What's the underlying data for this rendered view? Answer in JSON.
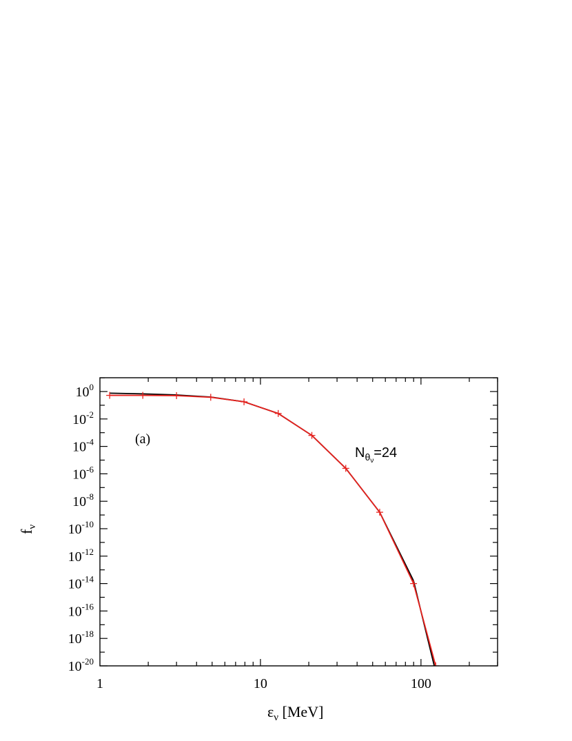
{
  "chart_data": {
    "type": "line",
    "xscale": "log",
    "yscale": "log",
    "xlim": [
      1,
      300
    ],
    "ylim_exponent": [
      -20,
      1
    ],
    "x_ticks": [
      {
        "value": 1,
        "label": "1"
      },
      {
        "value": 10,
        "label": "10"
      },
      {
        "value": 100,
        "label": "100"
      }
    ],
    "y_ticks": [
      {
        "exp": 0,
        "base": "10",
        "sup": "0"
      },
      {
        "exp": -2,
        "base": "10",
        "sup": "-2"
      },
      {
        "exp": -4,
        "base": "10",
        "sup": "-4"
      },
      {
        "exp": -6,
        "base": "10",
        "sup": "-6"
      },
      {
        "exp": -8,
        "base": "10",
        "sup": "-8"
      },
      {
        "exp": -10,
        "base": "10",
        "sup": "-10"
      },
      {
        "exp": -12,
        "base": "10",
        "sup": "-12"
      },
      {
        "exp": -14,
        "base": "10",
        "sup": "-14"
      },
      {
        "exp": -16,
        "base": "10",
        "sup": "-16"
      },
      {
        "exp": -18,
        "base": "10",
        "sup": "-18"
      },
      {
        "exp": -20,
        "base": "10",
        "sup": "-20"
      }
    ],
    "xlabel": {
      "main": "ε",
      "sub": "ν",
      "rest": " [MeV]"
    },
    "ylabel": {
      "main": "f",
      "sub": "ν"
    },
    "panel_label": "(a)",
    "annotation": {
      "main": "N",
      "sub1": "θ",
      "sub2": "ν",
      "rest": "=24"
    },
    "series": [
      {
        "color": "#000000",
        "markers": false,
        "x": [
          1.15,
          1.85,
          3.0,
          4.9,
          7.9,
          12.9,
          20.9,
          34.0,
          55.3,
          89.9,
          121.0
        ],
        "log10_y": [
          -0.12,
          -0.17,
          -0.25,
          -0.4,
          -0.75,
          -1.6,
          -3.2,
          -5.6,
          -8.8,
          -13.8,
          -20.0
        ]
      },
      {
        "color": "#e8211d",
        "markers": true,
        "x": [
          1.15,
          1.85,
          3.0,
          4.9,
          7.9,
          12.9,
          20.9,
          34.0,
          55.3,
          89.9,
          123.5
        ],
        "log10_y": [
          -0.28,
          -0.28,
          -0.3,
          -0.42,
          -0.75,
          -1.6,
          -3.2,
          -5.6,
          -8.8,
          -14.0,
          -20.0
        ]
      }
    ]
  }
}
